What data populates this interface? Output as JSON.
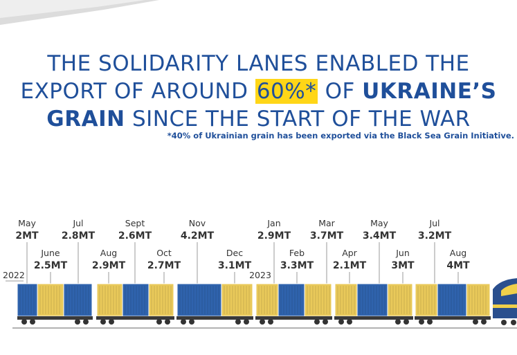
{
  "headline": {
    "line1": "THE SOLIDARITY LANES ENABLED THE",
    "line2_pre": "EXPORT OF AROUND ",
    "line2_highlight": "60%*",
    "line2_mid": " OF ",
    "line2_bold": "UKRAINE’S",
    "line3_bold": "GRAIN",
    "line3_rest": " SINCE THE START OF THE WAR"
  },
  "footnote": "*40% of Ukrainian grain has been exported via the Black Sea Grain Initiative.",
  "colors": {
    "title": "#1f4f9a",
    "highlight": "#ffd617",
    "container_blue": "#2f63ad",
    "container_yellow": "#e9c95a",
    "label": "#333333",
    "wheel": "#333333"
  },
  "chart_data": {
    "type": "bar",
    "unit": "MT",
    "year_markers": [
      "2022",
      "2023"
    ],
    "categories": [
      "May",
      "June",
      "Jul",
      "Aug",
      "Sept",
      "Oct",
      "Nov",
      "Dec",
      "Jan",
      "Feb",
      "Mar",
      "Apr",
      "May",
      "Jun",
      "Jul",
      "Aug"
    ],
    "values": [
      2,
      2.5,
      2.8,
      2.9,
      2.6,
      2.7,
      4.2,
      3.1,
      2.9,
      3.3,
      3.7,
      2.1,
      3.4,
      3,
      3.2,
      4
    ],
    "value_labels": [
      "2MT",
      "2.5MT",
      "2.8MT",
      "2.9MT",
      "2.6MT",
      "2.7MT",
      "4.2MT",
      "3.1MT",
      "2.9MT",
      "3.3MT",
      "3.7MT",
      "2.1MT",
      "3.4MT",
      "3MT",
      "3.2MT",
      "4MT"
    ]
  }
}
